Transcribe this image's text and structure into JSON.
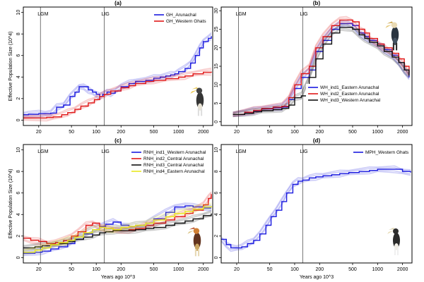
{
  "chart_data": [
    {
      "panel": "(a)",
      "type": "line",
      "xscale": "log",
      "xlim": [
        13,
        2600
      ],
      "ylim": [
        -0.5,
        10.5
      ],
      "xticks": [
        "20",
        "50",
        "100",
        "200",
        "500",
        "1000",
        "2000"
      ],
      "yticks": [
        "0",
        "2",
        "4",
        "6",
        "8",
        "10"
      ],
      "ylabel": "Effective Population Size (10^4)",
      "xlabel": "",
      "vlines": [
        {
          "label": "LGM",
          "x": 21
        },
        {
          "label": "LIG",
          "x": 125
        }
      ],
      "legend_position": "top-right",
      "colors": {
        "GH_Arunachal": "#1a1adf",
        "GH_Western Ghats": "#e01818"
      },
      "series": [
        {
          "name": "GH_Arunachal",
          "color": "#1a1adf",
          "x": [
            13,
            15,
            20,
            24,
            28,
            33,
            40,
            48,
            55,
            62,
            70,
            80,
            90,
            100,
            110,
            120,
            135,
            150,
            170,
            200,
            250,
            300,
            400,
            500,
            600,
            700,
            800,
            900,
            1000,
            1200,
            1400,
            1600,
            1800,
            2000,
            2300,
            2500
          ],
          "y": [
            0.5,
            0.55,
            0.6,
            0.6,
            0.65,
            1.2,
            1.4,
            2.2,
            2.6,
            3.1,
            3.1,
            2.8,
            2.6,
            2.4,
            2.2,
            2.4,
            2.6,
            2.5,
            2.7,
            3.1,
            3.4,
            3.6,
            3.7,
            3.9,
            4.0,
            4.1,
            4.2,
            4.3,
            4.5,
            4.8,
            5.3,
            6.0,
            6.7,
            7.3,
            7.6,
            7.8
          ]
        },
        {
          "name": "GH_Western Ghats",
          "color": "#e01818",
          "x": [
            13,
            20,
            25,
            30,
            38,
            45,
            55,
            65,
            80,
            95,
            110,
            125,
            150,
            200,
            250,
            300,
            400,
            500,
            700,
            1000,
            1200,
            1500,
            2000,
            2500
          ],
          "y": [
            0.2,
            0.2,
            0.25,
            0.3,
            0.5,
            0.7,
            1.0,
            1.3,
            1.6,
            1.9,
            2.2,
            2.4,
            2.7,
            3.0,
            3.2,
            3.4,
            3.6,
            3.7,
            3.85,
            4.0,
            4.1,
            4.3,
            4.45,
            4.5
          ]
        }
      ]
    },
    {
      "panel": "(b)",
      "type": "line",
      "xscale": "log",
      "xlim": [
        13,
        2600
      ],
      "ylim": [
        -1,
        31
      ],
      "xticks": [
        "20",
        "50",
        "100",
        "200",
        "500",
        "1000",
        "2000"
      ],
      "yticks": [
        "0",
        "5",
        "10",
        "15",
        "20",
        "25",
        "30"
      ],
      "ylabel": "",
      "xlabel": "",
      "vlines": [
        {
          "label": "LGM",
          "x": 21
        },
        {
          "label": "LIG",
          "x": 125
        }
      ],
      "legend_position": "bottom-right",
      "colors": {
        "WH_ind1_Eastern Arunachal": "#1a1adf",
        "WH_ind2_Eastern Arunachal": "#e01818",
        "WH_ind3_Western Arunachal": "#111111"
      },
      "series": [
        {
          "name": "WH_ind1_Eastern Arunachal",
          "color": "#1a1adf",
          "x": [
            18,
            25,
            32,
            40,
            55,
            70,
            85,
            100,
            120,
            150,
            180,
            220,
            280,
            350,
            420,
            500,
            600,
            700,
            800,
            1000,
            1200,
            1500,
            1800,
            2100,
            2400
          ],
          "y": [
            2,
            2.5,
            3,
            3.5,
            3.8,
            4,
            6,
            9,
            12,
            14,
            19,
            22,
            25,
            26.5,
            26.5,
            26,
            24,
            23,
            22,
            21,
            19.5,
            18,
            16,
            14,
            12
          ]
        },
        {
          "name": "WH_ind2_Eastern Arunachal",
          "color": "#e01818",
          "x": [
            18,
            25,
            32,
            40,
            55,
            70,
            85,
            100,
            120,
            150,
            180,
            220,
            280,
            350,
            420,
            500,
            600,
            700,
            800,
            1000,
            1200,
            1500,
            1800,
            2100,
            2400
          ],
          "y": [
            2,
            2.6,
            3.1,
            3.6,
            4,
            4.2,
            6.5,
            10,
            13,
            15,
            20,
            23,
            26,
            27.5,
            27.5,
            27,
            25,
            24,
            22.5,
            21,
            20,
            18.5,
            17,
            15,
            13
          ]
        },
        {
          "name": "WH_ind3_Western Arunachal",
          "color": "#111111",
          "x": [
            18,
            25,
            32,
            40,
            55,
            70,
            85,
            100,
            120,
            150,
            180,
            220,
            280,
            350,
            420,
            500,
            600,
            700,
            800,
            1000,
            1200,
            1500,
            1800,
            2100,
            2400
          ],
          "y": [
            2,
            2.3,
            2.7,
            3,
            3.3,
            3.6,
            4.5,
            6.5,
            7,
            12,
            17,
            21,
            24,
            25.5,
            25.5,
            25,
            23.5,
            22.5,
            21.5,
            20.5,
            19,
            17.5,
            16,
            14,
            12.5
          ]
        }
      ]
    },
    {
      "panel": "(c)",
      "type": "line",
      "xscale": "log",
      "xlim": [
        13,
        2600
      ],
      "ylim": [
        -0.5,
        10.5
      ],
      "xticks": [
        "20",
        "50",
        "100",
        "200",
        "500",
        "1000",
        "2000"
      ],
      "yticks": [
        "0",
        "2",
        "4",
        "6",
        "8",
        "10"
      ],
      "ylabel": "Effective Population Size (10^4)",
      "xlabel": "Years ago 10^3",
      "vlines": [
        {
          "label": "LGM",
          "x": 21
        },
        {
          "label": "LIG",
          "x": 125
        }
      ],
      "legend_position": "top-right",
      "colors": {
        "RNH_ind1_Western Arunachal": "#1a1adf",
        "RNH_ind2_Central Arunachal": "#e01818",
        "RNH_ind3_Central Arunachal": "#111111",
        "RNH_ind4_Eastern Arunachal": "#e8e820"
      },
      "series": [
        {
          "name": "RNH_ind1_Western Arunachal",
          "color": "#1a1adf",
          "x": [
            13,
            18,
            22,
            28,
            35,
            45,
            55,
            70,
            90,
            110,
            130,
            160,
            200,
            250,
            300,
            400,
            500,
            700,
            900,
            1200,
            1500,
            2000,
            2500
          ],
          "y": [
            0.4,
            0.5,
            0.6,
            0.8,
            1.0,
            1.3,
            1.7,
            2.2,
            2.6,
            2.9,
            3.1,
            3.3,
            3.0,
            2.9,
            3.0,
            3.2,
            3.6,
            4.2,
            4.7,
            4.8,
            4.7,
            4.6,
            4.6
          ]
        },
        {
          "name": "RNH_ind2_Central Arunachal",
          "color": "#e01818",
          "x": [
            13,
            16,
            20,
            25,
            32,
            40,
            50,
            60,
            75,
            90,
            110,
            130,
            160,
            200,
            250,
            300,
            400,
            500,
            700,
            900,
            1200,
            1500,
            2000,
            2300,
            2500
          ],
          "y": [
            1.8,
            1.6,
            1.5,
            1.3,
            1.4,
            1.6,
            2.0,
            2.4,
            3.0,
            3.2,
            2.8,
            2.7,
            2.6,
            2.5,
            2.6,
            2.7,
            3.0,
            3.2,
            3.5,
            3.8,
            4.1,
            4.4,
            4.9,
            5.5,
            5.9
          ]
        },
        {
          "name": "RNH_ind3_Central Arunachal",
          "color": "#111111",
          "x": [
            13,
            18,
            22,
            28,
            35,
            45,
            55,
            70,
            90,
            110,
            130,
            160,
            200,
            250,
            300,
            400,
            500,
            700,
            900,
            1200,
            1500,
            2000,
            2500
          ],
          "y": [
            0.9,
            1.0,
            1.1,
            1.2,
            1.3,
            1.5,
            1.7,
            1.9,
            2.1,
            2.3,
            2.4,
            2.5,
            2.5,
            2.5,
            2.6,
            2.7,
            2.8,
            3.0,
            3.2,
            3.4,
            3.6,
            3.9,
            4.1
          ]
        },
        {
          "name": "RNH_ind4_Eastern Arunachal",
          "color": "#e8e820",
          "x": [
            13,
            18,
            22,
            28,
            35,
            45,
            55,
            70,
            90,
            110,
            130,
            160,
            200,
            250,
            300,
            400,
            500,
            700,
            900,
            1200,
            1500,
            2000,
            2500
          ],
          "y": [
            0.5,
            0.7,
            0.9,
            1.2,
            1.4,
            1.6,
            1.9,
            2.3,
            2.6,
            2.8,
            2.7,
            2.6,
            2.8,
            2.9,
            3.0,
            3.2,
            3.5,
            3.8,
            4.1,
            4.3,
            4.5,
            4.7,
            4.8
          ]
        }
      ]
    },
    {
      "panel": "(d)",
      "type": "line",
      "xscale": "log",
      "xlim": [
        13,
        2600
      ],
      "ylim": [
        -0.5,
        10.5
      ],
      "xticks": [
        "20",
        "50",
        "100",
        "200",
        "500",
        "1000",
        "2000"
      ],
      "yticks": [
        "0",
        "2",
        "4",
        "6",
        "8",
        "10"
      ],
      "ylabel": "",
      "xlabel": "Years ago 10^3",
      "vlines": [
        {
          "label": "LGM",
          "x": 21
        },
        {
          "label": "LIG",
          "x": 125
        }
      ],
      "legend_position": "top-right",
      "colors": {
        "MPH_Western Ghats": "#1a1adf"
      },
      "series": [
        {
          "name": "MPH_Western Ghats",
          "color": "#1a1adf",
          "x": [
            13,
            15,
            17,
            20,
            23,
            27,
            32,
            38,
            45,
            52,
            60,
            70,
            80,
            95,
            110,
            125,
            150,
            180,
            220,
            280,
            350,
            450,
            600,
            800,
            1000,
            1300,
            1600,
            2000,
            2500
          ],
          "y": [
            1.7,
            1.2,
            0.9,
            0.9,
            1.0,
            1.3,
            1.6,
            2.2,
            3.0,
            3.8,
            4.4,
            5.2,
            6.0,
            6.8,
            7.1,
            7.2,
            7.4,
            7.5,
            7.6,
            7.7,
            7.8,
            7.9,
            8.0,
            8.1,
            8.2,
            8.2,
            8.2,
            8.0,
            7.9
          ]
        }
      ]
    }
  ]
}
